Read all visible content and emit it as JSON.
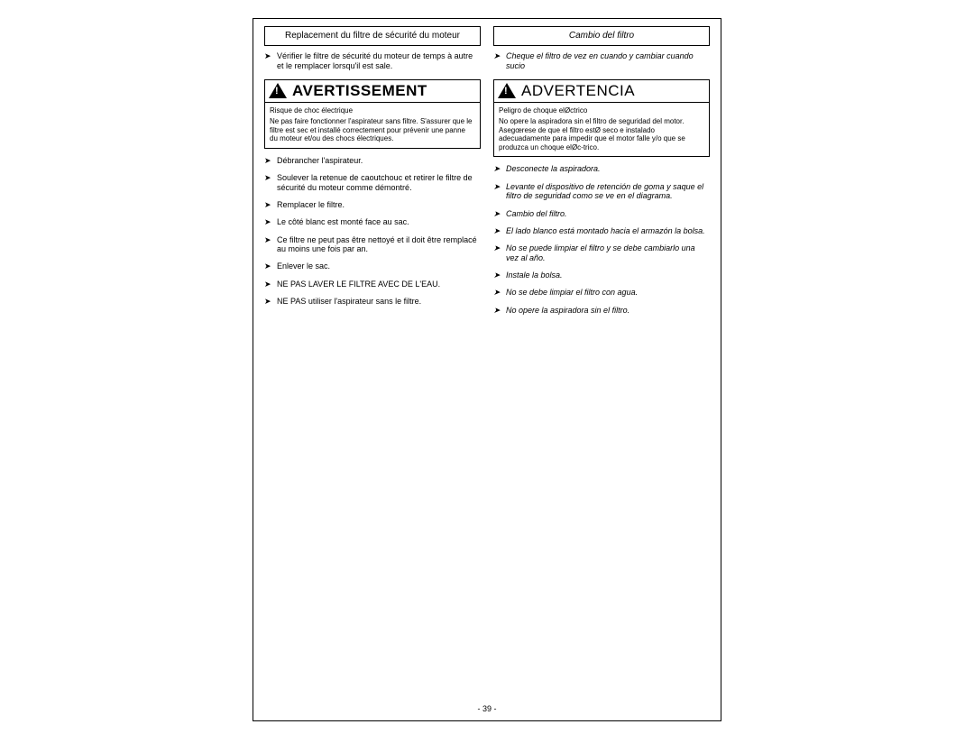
{
  "page_number": "- 39 -",
  "left": {
    "title": "Replacement du filtre de sécurité du moteur",
    "intro": "Vérifier le filtre de sécurité du moteur de temps à autre et le remplacer lorsqu'il est sale.",
    "warning_label": "AVERTISSEMENT",
    "warning_lead": "Risque de choc électrique",
    "warning_body": "Ne pas faire fonctionner l'aspirateur sans filtre. S'assurer que le filtre est sec et installé correctement pour prévenir une panne du moteur et/ou des chocs électriques.",
    "steps": [
      "Débrancher l'aspirateur.",
      "Soulever la retenue de caoutchouc et retirer le filtre de sécurité du moteur comme démontré.",
      "Remplacer le filtre.",
      "Le côté blanc est monté face au sac.",
      "Ce filtre ne peut pas être nettoyé et il doit être remplacé au moins une fois par an.",
      "Enlever le sac.",
      "NE PAS LAVER LE FILTRE AVEC DE L'EAU.",
      "NE PAS utiliser l'aspirateur sans le filtre."
    ]
  },
  "right": {
    "title": "Cambio del filtro",
    "intro": "Cheque el filtro de vez en cuando y cambiar cuando sucio",
    "warning_label": "ADVERTENCIA",
    "warning_lead": "Peligro de choque elØctrico",
    "warning_body": "No opere la aspiradora sin el filtro de seguridad del motor. Asegœrese de que el filtro estØ seco e instalado adecuadamente para impedir que el motor falle y/o que se produzca un choque elØc-trico.",
    "steps": [
      "Desconecte la aspiradora.",
      "Levante el dispositivo de retención de goma y saque el filtro de seguridad como se ve en el diagrama.",
      "Cambio del filtro.",
      "El lado blanco está montado hacia el armazón la bolsa.",
      "No se puede limpiar el filtro y se debe cambiarlo una vez al año.",
      "Instale la bolsa.",
      "No se debe limpiar el filtro con agua.",
      "No opere la aspiradora sin el filtro."
    ]
  }
}
